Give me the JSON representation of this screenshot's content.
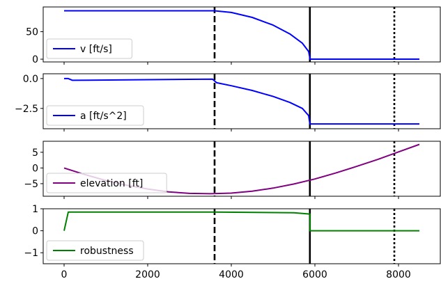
{
  "chart_data": {
    "type": "line",
    "shared_x": {
      "range": [
        -500,
        9000
      ],
      "ticks": [
        0,
        2000,
        4000,
        6000,
        8000
      ],
      "tick_labels": [
        "0",
        "2000",
        "4000",
        "6000",
        "8000"
      ]
    },
    "vertical_lines": [
      {
        "x": 3600,
        "style": "dashed",
        "color": "#000000"
      },
      {
        "x": 5880,
        "style": "solid",
        "color": "#000000"
      },
      {
        "x": 7900,
        "style": "dotted",
        "color": "#000000"
      }
    ],
    "panels": [
      {
        "series": [
          {
            "name": "v [ft/s]",
            "color": "#0000ff",
            "x": [
              0,
              3600,
              4000,
              4500,
              5000,
              5400,
              5700,
              5850,
              5880,
              5881,
              8500
            ],
            "y": [
              88,
              88,
              85,
              76,
              62,
              46,
              29,
              14,
              2,
              0,
              0
            ]
          }
        ],
        "ylim": [
          -5,
          95
        ],
        "yticks": [
          0,
          50
        ],
        "ytick_labels": [
          "0",
          "50"
        ],
        "legend": "lower-left"
      },
      {
        "series": [
          {
            "name": "a [ft/s^2]",
            "color": "#0000ff",
            "x": [
              0,
              100,
              200,
              3550,
              3650,
              4000,
              4500,
              5000,
              5400,
              5700,
              5850,
              5880,
              5881,
              8500
            ],
            "y": [
              0,
              0,
              -0.15,
              -0.05,
              -0.35,
              -0.6,
              -1.0,
              -1.5,
              -2.0,
              -2.5,
              -3.1,
              -3.8,
              -3.8,
              -3.8
            ]
          }
        ],
        "ylim": [
          -4.2,
          0.4
        ],
        "yticks": [
          -2.5,
          0
        ],
        "ytick_labels": [
          "−2.5",
          "0.0"
        ],
        "legend": "lower-left"
      },
      {
        "series": [
          {
            "name": "elevation [ft]",
            "color": "#800080",
            "x": [
              0,
              500,
              1000,
              1500,
              2000,
              2500,
              3000,
              3500,
              4000,
              4500,
              5000,
              5500,
              6000,
              6500,
              7000,
              7500,
              8000,
              8500
            ],
            "y": [
              0,
              -2.1,
              -4.0,
              -5.5,
              -6.7,
              -7.6,
              -8.1,
              -8.2,
              -8.0,
              -7.4,
              -6.4,
              -5.1,
              -3.5,
              -1.6,
              0.5,
              2.7,
              5.1,
              7.5
            ]
          }
        ],
        "ylim": [
          -9,
          8.5
        ],
        "yticks": [
          -5,
          0,
          5
        ],
        "ytick_labels": [
          "−5",
          "0",
          "5"
        ],
        "legend": "lower-left"
      },
      {
        "series": [
          {
            "name": "robustness",
            "color": "#008000",
            "x": [
              0,
              100,
              3600,
              5500,
              5880,
              5881,
              8500
            ],
            "y": [
              0,
              0.85,
              0.85,
              0.82,
              0.76,
              0,
              0
            ]
          }
        ],
        "ylim": [
          -1.5,
          1.0
        ],
        "yticks": [
          -1,
          0,
          1
        ],
        "ytick_labels": [
          "−1",
          "0",
          "1"
        ],
        "legend": "lower-left"
      }
    ]
  }
}
